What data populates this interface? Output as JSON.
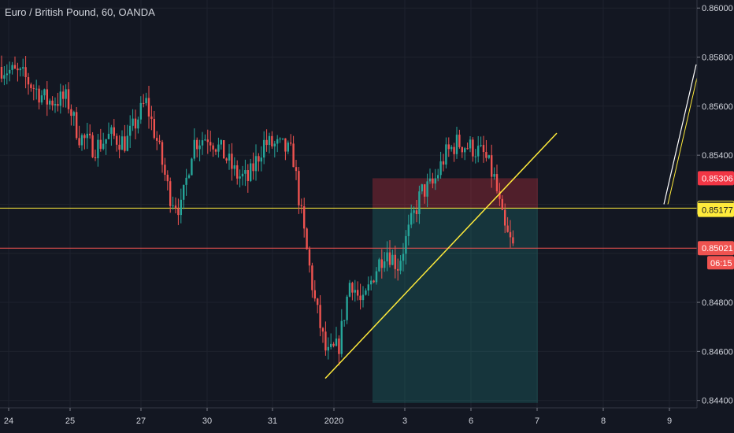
{
  "chart_data": {
    "type": "candlestick",
    "title": "Euro / British Pound, 60, OANDA",
    "symbol": "EURGBP",
    "timeframe": "60",
    "source": "OANDA",
    "y_ticks": [
      0.86,
      0.858,
      0.856,
      0.854,
      0.852,
      0.85,
      0.848,
      0.846,
      0.844
    ],
    "y_tick_labels": [
      "0.86000",
      "0.85800",
      "0.85600",
      "0.85400",
      "0.85306",
      "0.85184",
      "0.85177",
      "0.85021",
      "0.84800",
      "0.84600",
      "0.84400"
    ],
    "axis_tick_labels": [
      "0.86000",
      "0.85800",
      "0.85600",
      "0.85400",
      "0.84800",
      "0.84600",
      "0.84400"
    ],
    "ylim": [
      0.8437,
      0.8602
    ],
    "x_tick_labels": [
      "24",
      "25",
      "27",
      "30",
      "31",
      "2020",
      "3",
      "6",
      "7",
      "8",
      "9"
    ],
    "price_markers": [
      {
        "label": "0.85306",
        "value": 0.85306,
        "color": "#f23645",
        "text_color": "#ffffff"
      },
      {
        "label": "0.85184",
        "value": 0.85184,
        "color": "#131722",
        "text_color": "#d1d4dc",
        "border": "#ffeb3b"
      },
      {
        "label": "0.85177",
        "value": 0.85177,
        "color": "#ffeb3b",
        "text_color": "#131722"
      },
      {
        "label": "0.85021",
        "value": 0.85021,
        "color": "#ef5350",
        "text_color": "#ffffff"
      }
    ],
    "countdown": "06:15",
    "horizontal_lines": [
      {
        "value": 0.85184,
        "color": "#ffeb3b"
      },
      {
        "value": 0.85021,
        "color": "#ef5350"
      }
    ],
    "position_box": {
      "entry": 0.85184,
      "stop": 0.85306,
      "target": 0.8439,
      "stop_color": "#f23645",
      "target_color": "#26a69a"
    },
    "trendline": {
      "from": 0.8449,
      "to": 0.8549,
      "color": "#ffeb3b"
    },
    "colors": {
      "up": "#26a69a",
      "down": "#ef5350",
      "grid": "#1e222d",
      "background": "#131722",
      "text": "#d1d4dc"
    },
    "close": 0.85021,
    "low": 0.8449,
    "high": 0.8545
  }
}
